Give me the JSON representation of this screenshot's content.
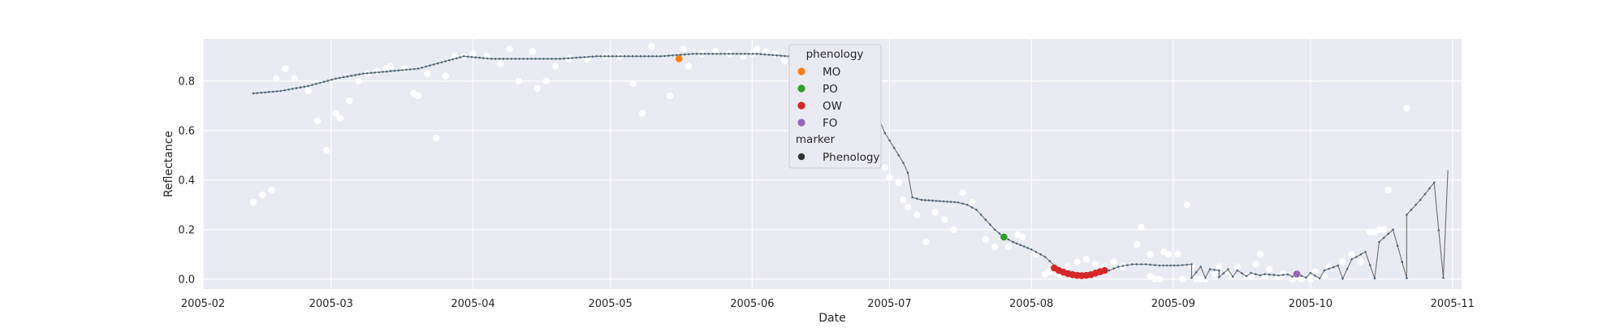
{
  "chart_data": {
    "type": "scatter",
    "title": "",
    "xlabel": "Date",
    "ylabel": "Reflectance",
    "xlim": [
      "2005-02-01",
      "2005-11-03"
    ],
    "ylim": [
      -0.04,
      0.97
    ],
    "grid": true,
    "legend_placement": "top-center",
    "x_ticks": [
      "2005-02",
      "2005-03",
      "2005-04",
      "2005-05",
      "2005-06",
      "2005-07",
      "2005-08",
      "2005-09",
      "2005-10",
      "2005-11"
    ],
    "y_ticks": [
      0.0,
      0.2,
      0.4,
      0.6,
      0.8
    ],
    "y_tick_labels": [
      "0.0",
      "0.2",
      "0.4",
      "0.6",
      "0.8"
    ],
    "colors": {
      "background": "#eaeaf2",
      "grid": "#ffffff",
      "observations": "#ffffff",
      "fitted_line": "#6e6e6e",
      "fitted_dots": "#4c6a7e",
      "MO": "#ff7f0e",
      "PO": "#2ca02c",
      "OW": "#d62728",
      "FO": "#9467bd",
      "marker_swatch": "#333333"
    },
    "legend": {
      "title": "phenology",
      "entries": [
        {
          "label": "MO",
          "color": "#ff7f0e"
        },
        {
          "label": "PO",
          "color": "#2ca02c"
        },
        {
          "label": "OW",
          "color": "#d62728"
        },
        {
          "label": "FO",
          "color": "#9467bd"
        }
      ],
      "marker_title": "marker",
      "marker_entries": [
        {
          "label": "Phenology",
          "color": "#333333"
        }
      ]
    },
    "observations": [
      [
        "2005-02-12",
        0.31
      ],
      [
        "2005-02-14",
        0.34
      ],
      [
        "2005-02-16",
        0.36
      ],
      [
        "2005-02-17",
        0.81
      ],
      [
        "2005-02-19",
        0.85
      ],
      [
        "2005-02-21",
        0.81
      ],
      [
        "2005-02-24",
        0.76
      ],
      [
        "2005-02-26",
        0.64
      ],
      [
        "2005-02-28",
        0.52
      ],
      [
        "2005-03-02",
        0.67
      ],
      [
        "2005-03-03",
        0.65
      ],
      [
        "2005-03-05",
        0.72
      ],
      [
        "2005-03-07",
        0.8
      ],
      [
        "2005-03-09",
        0.83
      ],
      [
        "2005-03-11",
        0.84
      ],
      [
        "2005-03-13",
        0.85
      ],
      [
        "2005-03-14",
        0.86
      ],
      [
        "2005-03-17",
        0.85
      ],
      [
        "2005-03-19",
        0.75
      ],
      [
        "2005-03-20",
        0.74
      ],
      [
        "2005-03-22",
        0.83
      ],
      [
        "2005-03-24",
        0.57
      ],
      [
        "2005-03-26",
        0.82
      ],
      [
        "2005-03-28",
        0.9
      ],
      [
        "2005-03-30",
        0.9
      ],
      [
        "2005-04-01",
        0.91
      ],
      [
        "2005-04-04",
        0.9
      ],
      [
        "2005-04-07",
        0.87
      ],
      [
        "2005-04-09",
        0.93
      ],
      [
        "2005-04-11",
        0.8
      ],
      [
        "2005-04-14",
        0.92
      ],
      [
        "2005-04-15",
        0.77
      ],
      [
        "2005-04-17",
        0.8
      ],
      [
        "2005-04-19",
        0.86
      ],
      [
        "2005-04-22",
        0.89
      ],
      [
        "2005-04-26",
        0.89
      ],
      [
        "2005-04-30",
        0.9
      ],
      [
        "2005-05-03",
        0.9
      ],
      [
        "2005-05-06",
        0.79
      ],
      [
        "2005-05-08",
        0.67
      ],
      [
        "2005-05-10",
        0.94
      ],
      [
        "2005-05-14",
        0.74
      ],
      [
        "2005-05-17",
        0.93
      ],
      [
        "2005-05-18",
        0.86
      ],
      [
        "2005-05-21",
        0.91
      ],
      [
        "2005-05-24",
        0.92
      ],
      [
        "2005-05-27",
        0.91
      ],
      [
        "2005-05-30",
        0.9
      ],
      [
        "2005-06-01",
        0.91
      ],
      [
        "2005-06-02",
        0.93
      ],
      [
        "2005-06-04",
        0.92
      ],
      [
        "2005-06-06",
        0.91
      ],
      [
        "2005-06-08",
        0.88
      ],
      [
        "2005-06-10",
        0.84
      ],
      [
        "2005-06-12",
        0.87
      ],
      [
        "2005-06-13",
        0.92
      ],
      [
        "2005-06-15",
        0.9
      ],
      [
        "2005-06-18",
        0.85
      ],
      [
        "2005-06-20",
        0.9
      ],
      [
        "2005-06-22",
        0.88
      ],
      [
        "2005-06-24",
        0.82
      ],
      [
        "2005-06-26",
        0.83
      ],
      [
        "2005-06-30",
        0.45
      ],
      [
        "2005-07-01",
        0.41
      ],
      [
        "2005-07-03",
        0.39
      ],
      [
        "2005-07-04",
        0.32
      ],
      [
        "2005-07-05",
        0.29
      ],
      [
        "2005-07-07",
        0.26
      ],
      [
        "2005-07-09",
        0.15
      ],
      [
        "2005-07-11",
        0.27
      ],
      [
        "2005-07-13",
        0.24
      ],
      [
        "2005-07-15",
        0.2
      ],
      [
        "2005-07-17",
        0.35
      ],
      [
        "2005-07-19",
        0.31
      ],
      [
        "2005-07-22",
        0.16
      ],
      [
        "2005-07-24",
        0.13
      ],
      [
        "2005-07-27",
        0.13
      ],
      [
        "2005-07-29",
        0.18
      ],
      [
        "2005-07-30",
        0.17
      ],
      [
        "2005-08-02",
        0.1
      ],
      [
        "2005-08-04",
        0.02
      ],
      [
        "2005-08-05",
        0.03
      ],
      [
        "2005-08-07",
        0.02
      ],
      [
        "2005-08-09",
        0.05
      ],
      [
        "2005-08-11",
        0.07
      ],
      [
        "2005-08-13",
        0.08
      ],
      [
        "2005-08-15",
        0.06
      ],
      [
        "2005-08-17",
        0.05
      ],
      [
        "2005-08-19",
        0.07
      ],
      [
        "2005-08-21",
        0.05
      ],
      [
        "2005-08-24",
        0.14
      ],
      [
        "2005-08-25",
        0.21
      ],
      [
        "2005-08-27",
        0.1
      ],
      [
        "2005-08-28",
        0.0
      ],
      [
        "2005-08-30",
        0.11
      ],
      [
        "2005-08-31",
        0.1
      ],
      [
        "2005-09-02",
        0.1
      ],
      [
        "2005-09-04",
        0.3
      ],
      [
        "2005-09-05",
        0.05
      ],
      [
        "2005-09-06",
        0.0
      ],
      [
        "2005-09-08",
        0.0
      ],
      [
        "2005-09-10",
        0.02
      ],
      [
        "2005-09-13",
        0.03
      ],
      [
        "2005-09-15",
        0.05
      ],
      [
        "2005-09-17",
        0.01
      ],
      [
        "2005-09-19",
        0.06
      ],
      [
        "2005-09-20",
        0.1
      ],
      [
        "2005-09-22",
        0.04
      ],
      [
        "2005-09-24",
        0.01
      ],
      [
        "2005-09-27",
        0.0
      ],
      [
        "2005-09-29",
        0.0
      ],
      [
        "2005-10-01",
        0.0
      ],
      [
        "2005-10-04",
        0.01
      ],
      [
        "2005-08-27",
        0.01
      ],
      [
        "2005-08-29",
        0.0
      ],
      [
        "2005-09-03",
        0.0
      ],
      [
        "2005-09-07",
        0.0
      ],
      [
        "2005-09-11",
        0.05
      ],
      [
        "2005-09-14",
        0.01
      ],
      [
        "2005-09-18",
        0.01
      ],
      [
        "2005-09-21",
        0.01
      ],
      [
        "2005-09-25",
        0.02
      ],
      [
        "2005-09-28",
        0.02
      ],
      [
        "2005-10-02",
        0.03
      ],
      [
        "2005-10-05",
        0.05
      ],
      [
        "2005-10-08",
        0.07
      ],
      [
        "2005-10-10",
        0.1
      ],
      [
        "2005-10-12",
        0.07
      ],
      [
        "2005-10-14",
        0.19
      ],
      [
        "2005-10-15",
        0.19
      ],
      [
        "2005-10-16",
        0.2
      ],
      [
        "2005-10-17",
        0.2
      ],
      [
        "2005-10-18",
        0.36
      ],
      [
        "2005-10-22",
        0.69
      ]
    ],
    "fitted_curve": [
      [
        "2005-02-12",
        0.75
      ],
      [
        "2005-02-18",
        0.76
      ],
      [
        "2005-02-24",
        0.78
      ],
      [
        "2005-03-02",
        0.81
      ],
      [
        "2005-03-08",
        0.83
      ],
      [
        "2005-03-14",
        0.84
      ],
      [
        "2005-03-20",
        0.85
      ],
      [
        "2005-03-26",
        0.88
      ],
      [
        "2005-03-30",
        0.9
      ],
      [
        "2005-04-05",
        0.89
      ],
      [
        "2005-04-12",
        0.89
      ],
      [
        "2005-04-20",
        0.89
      ],
      [
        "2005-04-28",
        0.9
      ],
      [
        "2005-05-05",
        0.9
      ],
      [
        "2005-05-12",
        0.9
      ],
      [
        "2005-05-19",
        0.91
      ],
      [
        "2005-05-26",
        0.91
      ],
      [
        "2005-06-02",
        0.91
      ],
      [
        "2005-06-09",
        0.9
      ],
      [
        "2005-06-14",
        0.89
      ],
      [
        "2005-06-19",
        0.88
      ],
      [
        "2005-06-22",
        0.87
      ],
      [
        "2005-06-24",
        0.85
      ],
      [
        "2005-06-26",
        0.77
      ],
      [
        "2005-06-28",
        0.68
      ],
      [
        "2005-06-30",
        0.59
      ],
      [
        "2005-07-02",
        0.53
      ],
      [
        "2005-07-04",
        0.47
      ],
      [
        "2005-07-05",
        0.43
      ],
      [
        "2005-07-06",
        0.33
      ],
      [
        "2005-07-08",
        0.32
      ],
      [
        "2005-07-12",
        0.315
      ],
      [
        "2005-07-16",
        0.31
      ],
      [
        "2005-07-18",
        0.3
      ],
      [
        "2005-07-20",
        0.28
      ],
      [
        "2005-07-22",
        0.24
      ],
      [
        "2005-07-24",
        0.2
      ],
      [
        "2005-07-26",
        0.17
      ],
      [
        "2005-07-28",
        0.15
      ],
      [
        "2005-08-01",
        0.12
      ],
      [
        "2005-08-04",
        0.09
      ],
      [
        "2005-08-06",
        0.055
      ],
      [
        "2005-08-07",
        0.045
      ],
      [
        "2005-08-08",
        0.035
      ],
      [
        "2005-08-09",
        0.028
      ],
      [
        "2005-08-10",
        0.022
      ],
      [
        "2005-08-11",
        0.018
      ],
      [
        "2005-08-12",
        0.016
      ],
      [
        "2005-08-13",
        0.014
      ],
      [
        "2005-08-14",
        0.015
      ],
      [
        "2005-08-15",
        0.018
      ],
      [
        "2005-08-16",
        0.024
      ],
      [
        "2005-08-17",
        0.03
      ],
      [
        "2005-08-18",
        0.035
      ],
      [
        "2005-08-20",
        0.05
      ],
      [
        "2005-08-23",
        0.06
      ],
      [
        "2005-08-26",
        0.06
      ],
      [
        "2005-08-29",
        0.055
      ],
      [
        "2005-09-02",
        0.055
      ],
      [
        "2005-09-05",
        0.06
      ],
      [
        "2005-09-07",
        0.05
      ],
      [
        "2005-09-09",
        0.04
      ],
      [
        "2005-09-11",
        0.035
      ],
      [
        "2005-09-13",
        0.04
      ],
      [
        "2005-09-15",
        0.035
      ],
      [
        "2005-09-18",
        0.025
      ],
      [
        "2005-09-21",
        0.02
      ],
      [
        "2005-09-24",
        0.015
      ],
      [
        "2005-09-27",
        0.01
      ],
      [
        "2005-09-30",
        0.006
      ],
      [
        "2005-10-03",
        0.003
      ],
      [
        "2005-10-08",
        0.002
      ],
      [
        "2005-10-15",
        0.003
      ],
      [
        "2005-10-22",
        0.004
      ],
      [
        "2005-10-30",
        0.005
      ],
      [
        "2005-09-05",
        0.005
      ],
      [
        "2005-09-08",
        0.006
      ],
      [
        "2005-09-11",
        0.008
      ],
      [
        "2005-09-14",
        0.01
      ],
      [
        "2005-09-17",
        0.012
      ],
      [
        "2005-09-20",
        0.015
      ],
      [
        "2005-09-23",
        0.017
      ],
      [
        "2005-09-26",
        0.019
      ],
      [
        "2005-09-28",
        0.021
      ],
      [
        "2005-10-01",
        0.025
      ],
      [
        "2005-10-04",
        0.035
      ],
      [
        "2005-10-07",
        0.055
      ],
      [
        "2005-10-10",
        0.08
      ],
      [
        "2005-10-13",
        0.11
      ],
      [
        "2005-10-16",
        0.15
      ],
      [
        "2005-10-19",
        0.2
      ],
      [
        "2005-10-22",
        0.26
      ],
      [
        "2005-10-25",
        0.32
      ],
      [
        "2005-10-28",
        0.39
      ],
      [
        "2005-10-31",
        0.44
      ]
    ],
    "phenology_points": [
      {
        "label": "MO",
        "x": "2005-05-16",
        "y": 0.89
      },
      {
        "label": "PO",
        "x": "2005-07-26",
        "y": 0.17
      },
      {
        "label": "OW",
        "x": "2005-08-06",
        "y": 0.045
      },
      {
        "label": "OW",
        "x": "2005-08-07",
        "y": 0.035
      },
      {
        "label": "OW",
        "x": "2005-08-08",
        "y": 0.028
      },
      {
        "label": "OW",
        "x": "2005-08-09",
        "y": 0.022
      },
      {
        "label": "OW",
        "x": "2005-08-10",
        "y": 0.018
      },
      {
        "label": "OW",
        "x": "2005-08-11",
        "y": 0.015
      },
      {
        "label": "OW",
        "x": "2005-08-12",
        "y": 0.014
      },
      {
        "label": "OW",
        "x": "2005-08-13",
        "y": 0.015
      },
      {
        "label": "OW",
        "x": "2005-08-14",
        "y": 0.018
      },
      {
        "label": "OW",
        "x": "2005-08-15",
        "y": 0.024
      },
      {
        "label": "OW",
        "x": "2005-08-16",
        "y": 0.03
      },
      {
        "label": "OW",
        "x": "2005-08-17",
        "y": 0.035
      },
      {
        "label": "FO",
        "x": "2005-09-28",
        "y": 0.021
      }
    ]
  }
}
